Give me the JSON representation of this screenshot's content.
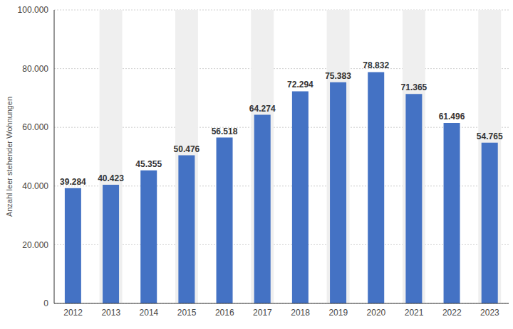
{
  "chart_data": {
    "type": "bar",
    "y_label": "Anzahl leer stehender Wohnungen",
    "categories": [
      "2012",
      "2013",
      "2014",
      "2015",
      "2016",
      "2017",
      "2018",
      "2019",
      "2020",
      "2021",
      "2022",
      "2023"
    ],
    "values": [
      39284,
      40423,
      45355,
      50476,
      56518,
      64274,
      72294,
      75383,
      78832,
      71365,
      61496,
      54765
    ],
    "value_labels": [
      "39.284",
      "40.423",
      "45.355",
      "50.476",
      "56.518",
      "64.274",
      "72.294",
      "75.383",
      "78.832",
      "71.365",
      "61.496",
      "54.765"
    ],
    "color": "#4472c4",
    "ylim": [
      0,
      100000
    ],
    "yticks": [
      0,
      {
        "value": 20000,
        "label": "20.000"
      },
      {
        "value": 40000,
        "label": "40.000"
      },
      {
        "value": 60000,
        "label": "60.000"
      },
      {
        "value": 80000,
        "label": "80.000"
      },
      {
        "value": 100000,
        "label": "100.000"
      }
    ],
    "grid": true,
    "data_labels": true
  }
}
